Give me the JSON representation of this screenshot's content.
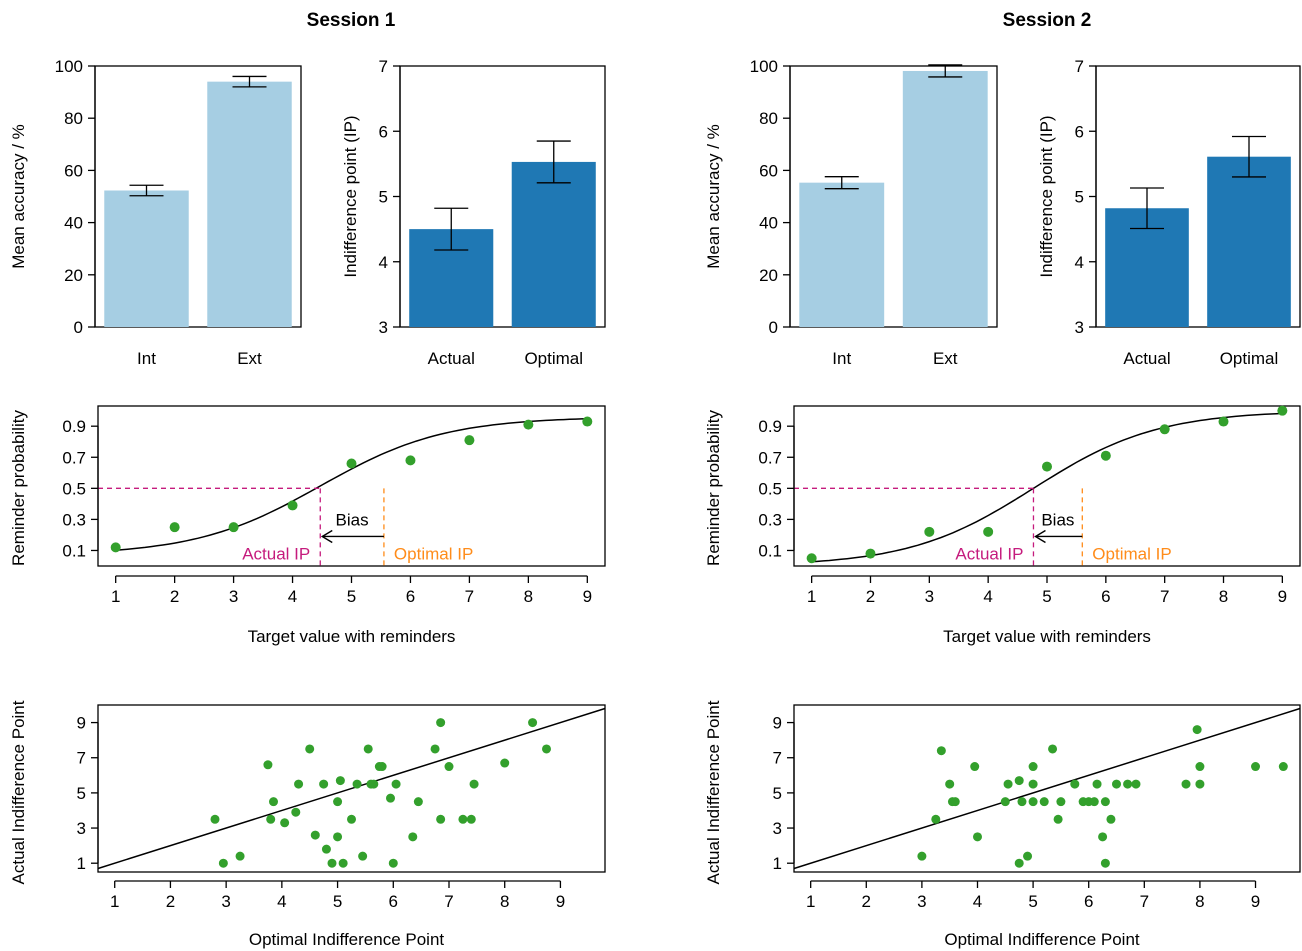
{
  "colors": {
    "bar_light": "#a6cee3",
    "bar_dark": "#1f78b4",
    "point": "#33a02c",
    "actual_ip": "#c51b7d",
    "optimal_ip": "#ff8c1a"
  },
  "sessions": [
    {
      "title": "Session 1",
      "accuracy": {
        "type": "bar",
        "ylabel": "Mean accuracy / %",
        "categories": [
          "Int",
          "Ext"
        ],
        "values": [
          52.3,
          94.0
        ],
        "err_low": [
          50.3,
          92.0
        ],
        "err_high": [
          54.3,
          96.0
        ],
        "ylim": [
          0,
          100
        ],
        "yticks": [
          0,
          20,
          40,
          60,
          80,
          100
        ]
      },
      "ip": {
        "type": "bar",
        "ylabel": "Indifference point (IP)",
        "categories": [
          "Actual",
          "Optimal"
        ],
        "values": [
          4.5,
          5.53
        ],
        "err_low": [
          4.18,
          5.21
        ],
        "err_high": [
          4.82,
          5.85
        ],
        "ylim": [
          3,
          7
        ],
        "yticks": [
          3,
          4,
          5,
          6,
          7
        ]
      },
      "curve": {
        "type": "line",
        "xlabel": "Target value with reminders",
        "ylabel": "Reminder probability",
        "x": [
          1,
          2,
          3,
          4,
          5,
          6,
          7,
          8,
          9
        ],
        "y": [
          0.12,
          0.25,
          0.25,
          0.39,
          0.66,
          0.68,
          0.81,
          0.91,
          0.93
        ],
        "xticks": [
          1,
          2,
          3,
          4,
          5,
          6,
          7,
          8,
          9
        ],
        "yticks": [
          0.1,
          0.3,
          0.5,
          0.7,
          0.9
        ],
        "xlim": [
          0.7,
          9.3
        ],
        "ylim": [
          0.0,
          1.03
        ],
        "actual_ip": 4.47,
        "optimal_ip": 5.55,
        "bias_label": "Bias",
        "actual_label": "Actual IP",
        "optimal_label": "Optimal IP"
      },
      "scatter": {
        "type": "scatter",
        "xlabel": "Optimal Indifference Point",
        "ylabel": "Actual Indifference Point",
        "xticks": [
          1,
          2,
          3,
          4,
          5,
          6,
          7,
          8,
          9
        ],
        "yticks": [
          1,
          3,
          5,
          7,
          9
        ],
        "xlim": [
          0.7,
          9.8
        ],
        "ylim": [
          0.5,
          10.0
        ],
        "x": [
          2.8,
          2.95,
          3.25,
          3.75,
          3.8,
          3.85,
          4.05,
          4.25,
          4.3,
          4.5,
          4.6,
          4.75,
          4.8,
          4.9,
          5.0,
          5.0,
          5.05,
          5.1,
          5.25,
          5.35,
          5.45,
          5.55,
          5.6,
          5.65,
          5.75,
          5.8,
          5.95,
          6.0,
          6.05,
          6.35,
          6.45,
          6.75,
          6.85,
          6.85,
          7.0,
          7.25,
          7.4,
          7.45,
          8.0,
          8.5,
          8.75
        ],
        "y": [
          3.5,
          1.0,
          1.4,
          6.6,
          3.5,
          4.5,
          3.3,
          3.9,
          5.5,
          7.5,
          2.6,
          5.5,
          1.8,
          1.0,
          4.5,
          2.5,
          5.7,
          1.0,
          3.5,
          5.5,
          1.4,
          7.5,
          5.5,
          5.5,
          6.5,
          6.5,
          4.7,
          1.0,
          5.5,
          2.5,
          4.5,
          7.5,
          3.5,
          9.0,
          6.5,
          3.5,
          3.5,
          5.5,
          6.7,
          9.0,
          7.5
        ]
      }
    },
    {
      "title": "Session 2",
      "accuracy": {
        "type": "bar",
        "ylabel": "Mean accuracy / %",
        "categories": [
          "Int",
          "Ext"
        ],
        "values": [
          55.3,
          98.1
        ],
        "err_low": [
          53.0,
          95.8
        ],
        "err_high": [
          57.6,
          100.4
        ],
        "ylim": [
          0,
          100
        ],
        "yticks": [
          0,
          20,
          40,
          60,
          80,
          100
        ]
      },
      "ip": {
        "type": "bar",
        "ylabel": "Indifference point (IP)",
        "categories": [
          "Actual",
          "Optimal"
        ],
        "values": [
          4.82,
          5.61
        ],
        "err_low": [
          4.51,
          5.3
        ],
        "err_high": [
          5.13,
          5.92
        ],
        "ylim": [
          3,
          7
        ],
        "yticks": [
          3,
          4,
          5,
          6,
          7
        ]
      },
      "curve": {
        "type": "line",
        "xlabel": "Target value with reminders",
        "ylabel": "Reminder probability",
        "x": [
          1,
          2,
          3,
          4,
          5,
          6,
          7,
          8,
          9
        ],
        "y": [
          0.05,
          0.08,
          0.22,
          0.22,
          0.64,
          0.71,
          0.88,
          0.93,
          1.0
        ],
        "xticks": [
          1,
          2,
          3,
          4,
          5,
          6,
          7,
          8,
          9
        ],
        "yticks": [
          0.1,
          0.3,
          0.5,
          0.7,
          0.9
        ],
        "xlim": [
          0.7,
          9.3
        ],
        "ylim": [
          0.0,
          1.03
        ],
        "actual_ip": 4.77,
        "optimal_ip": 5.6,
        "bias_label": "Bias",
        "actual_label": "Actual IP",
        "optimal_label": "Optimal IP"
      },
      "scatter": {
        "type": "scatter",
        "xlabel": "Optimal Indifference Point",
        "ylabel": "Actual Indifference Point",
        "xticks": [
          1,
          2,
          3,
          4,
          5,
          6,
          7,
          8,
          9
        ],
        "yticks": [
          1,
          3,
          5,
          7,
          9
        ],
        "xlim": [
          0.7,
          9.8
        ],
        "ylim": [
          0.5,
          10.0
        ],
        "x": [
          3.0,
          3.25,
          3.35,
          3.5,
          3.55,
          3.6,
          3.95,
          4.0,
          4.5,
          4.55,
          4.75,
          4.75,
          4.8,
          4.9,
          5.0,
          5.0,
          5.0,
          5.2,
          5.35,
          5.45,
          5.5,
          5.75,
          5.9,
          6.0,
          6.1,
          6.15,
          6.25,
          6.3,
          6.3,
          6.4,
          6.5,
          6.7,
          6.85,
          7.75,
          7.95,
          8.0,
          8.0,
          9.0,
          9.5
        ],
        "y": [
          1.4,
          3.5,
          7.4,
          5.5,
          4.5,
          4.5,
          6.5,
          2.5,
          4.5,
          5.5,
          1.0,
          5.7,
          4.5,
          1.4,
          4.5,
          5.5,
          6.5,
          4.5,
          7.5,
          3.5,
          4.5,
          5.5,
          4.5,
          4.5,
          4.5,
          5.5,
          2.5,
          1.0,
          4.5,
          3.5,
          5.5,
          5.5,
          5.5,
          5.5,
          8.6,
          5.5,
          6.5,
          6.5,
          6.5
        ]
      }
    }
  ]
}
